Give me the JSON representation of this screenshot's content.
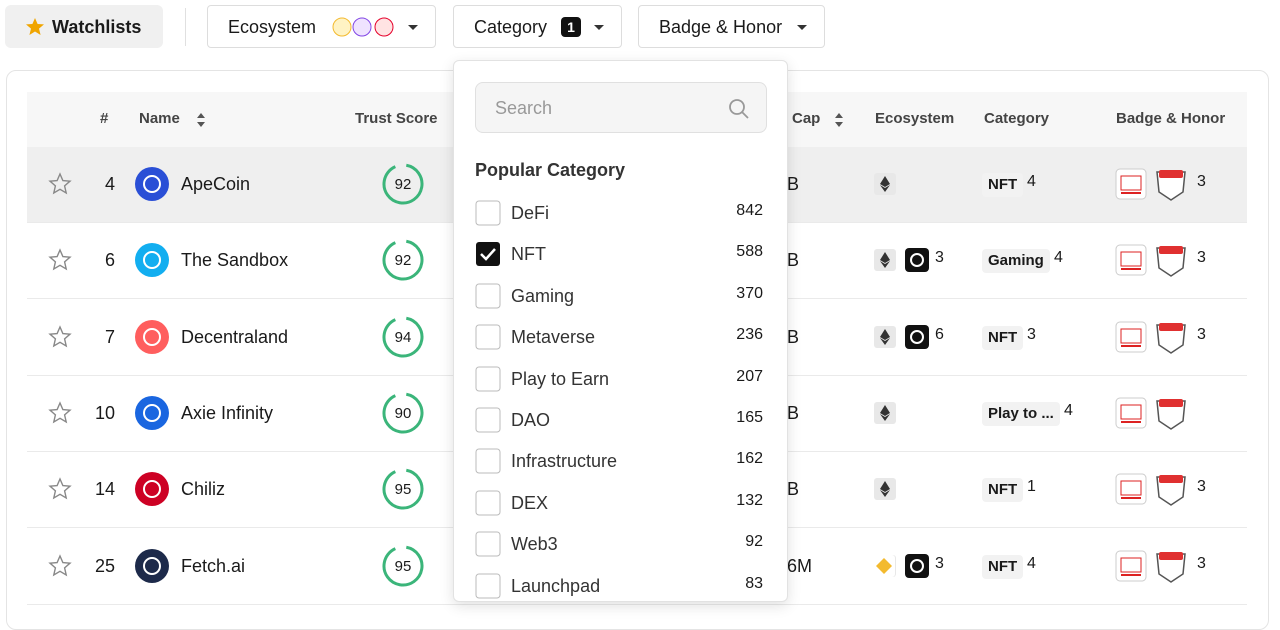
{
  "toolbar": {
    "watchlists": "Watchlists",
    "filters": [
      {
        "label": "Ecosystem"
      },
      {
        "label": "Category",
        "badge": 1
      },
      {
        "label": "Badge & Honor"
      }
    ]
  },
  "table": {
    "headers": [
      "#",
      "Name",
      "Trust Score",
      "Cap",
      "Ecosystem",
      "Category",
      "Badge & Honor"
    ],
    "rows": [
      {
        "rank": 4,
        "name": "ApeCoin",
        "trust_score": 92,
        "market_cap": "B",
        "category": "NFT",
        "category_count": 4,
        "badge_count": 3
      },
      {
        "rank": 6,
        "name": "The Sandbox",
        "trust_score": 92,
        "market_cap": "B",
        "ecosystem_count": 3,
        "category": "Gaming",
        "category_count": 4,
        "badge_count": 3
      },
      {
        "rank": 7,
        "name": "Decentraland",
        "trust_score": 94,
        "market_cap": "B",
        "ecosystem_count": 6,
        "category": "NFT",
        "category_count": 3,
        "badge_count": 3
      },
      {
        "rank": 10,
        "name": "Axie Infinity",
        "trust_score": 90,
        "market_cap": "B",
        "category": "Play to ...",
        "category_count": 4
      },
      {
        "rank": 14,
        "name": "Chiliz",
        "trust_score": 95,
        "market_cap": "B",
        "category": "NFT",
        "category_count": 1,
        "badge_count": 3
      },
      {
        "rank": 25,
        "name": "Fetch.ai",
        "trust_score": 95,
        "market_cap": "6M",
        "ecosystem_count": 3,
        "category": "NFT",
        "category_count": 4,
        "badge_count": 3
      }
    ]
  },
  "dropdown": {
    "search_placeholder": "Search",
    "heading": "Popular Category",
    "items": [
      {
        "label": "DeFi",
        "count": 842,
        "checked": false
      },
      {
        "label": "NFT",
        "count": 588,
        "checked": true
      },
      {
        "label": "Gaming",
        "count": 370,
        "checked": false
      },
      {
        "label": "Metaverse",
        "count": 236,
        "checked": false
      },
      {
        "label": "Play to Earn",
        "count": 207,
        "checked": false
      },
      {
        "label": "DAO",
        "count": 165,
        "checked": false
      },
      {
        "label": "Infrastructure",
        "count": 162,
        "checked": false
      },
      {
        "label": "DEX",
        "count": 132,
        "checked": false
      },
      {
        "label": "Web3",
        "count": 92,
        "checked": false
      },
      {
        "label": "Launchpad",
        "count": 83,
        "checked": false
      }
    ]
  }
}
